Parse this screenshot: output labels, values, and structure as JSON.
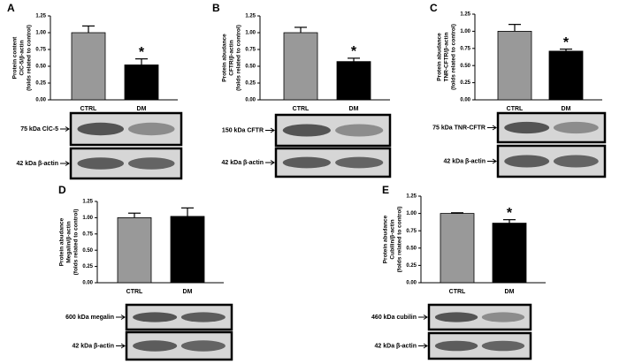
{
  "chart_data": [
    {
      "type": "bar",
      "panel": "A",
      "y_label": [
        "Protein content",
        "ClC-5/β-actin",
        "(folds related to control)"
      ],
      "categories": [
        "CTRL",
        "DM"
      ],
      "values": [
        1.0,
        0.52
      ],
      "errors": [
        0.1,
        0.09
      ],
      "colors": [
        "#999999",
        "#000000"
      ],
      "significance": [
        null,
        "*"
      ],
      "ylim": [
        0,
        1.25
      ],
      "yticks": [
        {
          "value": 0,
          "label": "0.00"
        },
        {
          "value": 0.25,
          "label": "0.25"
        },
        {
          "value": 0.5,
          "label": "0.50"
        },
        {
          "value": 0.75,
          "label": "0.75"
        },
        {
          "value": 1,
          "label": "1.00"
        },
        {
          "value": 1.25,
          "label": "1.25"
        }
      ],
      "blot_labels": [
        "75 kDa ClC-5",
        "42 kDa β-actin"
      ]
    },
    {
      "type": "bar",
      "panel": "B",
      "y_label": [
        "Protein abudance",
        "CFTR/β-actin",
        "(folds related to control)"
      ],
      "categories": [
        "CTRL",
        "DM"
      ],
      "values": [
        1.0,
        0.57
      ],
      "errors": [
        0.08,
        0.05
      ],
      "colors": [
        "#999999",
        "#000000"
      ],
      "significance": [
        null,
        "*"
      ],
      "ylim": [
        0,
        1.25
      ],
      "yticks": [
        {
          "value": 0,
          "label": "0.00"
        },
        {
          "value": 0.25,
          "label": "0.25"
        },
        {
          "value": 0.5,
          "label": "0.50"
        },
        {
          "value": 0.75,
          "label": "0.75"
        },
        {
          "value": 1,
          "label": "1.00"
        },
        {
          "value": 1.25,
          "label": "1.25"
        }
      ],
      "blot_labels": [
        "150 kDa CFTR",
        "42 kDa β-actin"
      ]
    },
    {
      "type": "bar",
      "panel": "C",
      "y_label": [
        "Protein abudance",
        "TNR-CFTR/β-actin",
        "(folds related to control)"
      ],
      "categories": [
        "CTRL",
        "DM"
      ],
      "values": [
        1.0,
        0.71
      ],
      "errors": [
        0.1,
        0.03
      ],
      "colors": [
        "#999999",
        "#000000"
      ],
      "significance": [
        null,
        "*"
      ],
      "ylim": [
        0,
        1.25
      ],
      "yticks": [
        {
          "value": 0,
          "label": "0.00"
        },
        {
          "value": 0.25,
          "label": "0.25"
        },
        {
          "value": 0.5,
          "label": "0.50"
        },
        {
          "value": 0.75,
          "label": "0.75"
        },
        {
          "value": 1,
          "label": "1.00"
        },
        {
          "value": 1.25,
          "label": "1.25"
        }
      ],
      "blot_labels": [
        "75 kDa TNR-CFTR",
        "42 kDa β-actin"
      ]
    },
    {
      "type": "bar",
      "panel": "D",
      "y_label": [
        "Protein abudance",
        "Megalin/β-actin",
        "(folds related to control)"
      ],
      "categories": [
        "CTRL",
        "DM"
      ],
      "values": [
        1.0,
        1.02
      ],
      "errors": [
        0.07,
        0.13
      ],
      "colors": [
        "#999999",
        "#000000"
      ],
      "significance": [
        null,
        null
      ],
      "ylim": [
        0,
        1.25
      ],
      "yticks": [
        {
          "value": 0,
          "label": "0.00"
        },
        {
          "value": 0.25,
          "label": "0.25"
        },
        {
          "value": 0.5,
          "label": "0.50"
        },
        {
          "value": 0.75,
          "label": "0.75"
        },
        {
          "value": 1,
          "label": "1.00"
        },
        {
          "value": 1.25,
          "label": "1.25"
        }
      ],
      "blot_labels": [
        "600 kDa megalin",
        "42 kDa β-actin"
      ]
    },
    {
      "type": "bar",
      "panel": "E",
      "y_label": [
        "Protein abudance",
        "Cubilin/β-actin",
        "(folds related to control)"
      ],
      "categories": [
        "CTRL",
        "DM"
      ],
      "values": [
        1.0,
        0.86
      ],
      "errors": [
        0.01,
        0.05
      ],
      "colors": [
        "#999999",
        "#000000"
      ],
      "significance": [
        null,
        "*"
      ],
      "ylim": [
        0,
        1.25
      ],
      "yticks": [
        {
          "value": 0,
          "label": "0.00"
        },
        {
          "value": 0.25,
          "label": "0.25"
        },
        {
          "value": 0.5,
          "label": "0.50"
        },
        {
          "value": 0.75,
          "label": "0.75"
        },
        {
          "value": 1,
          "label": "1.00"
        },
        {
          "value": 1.25,
          "label": "1.25"
        }
      ],
      "blot_labels": [
        "460 kDa cubilin",
        "42 kDa β-actin"
      ]
    }
  ]
}
